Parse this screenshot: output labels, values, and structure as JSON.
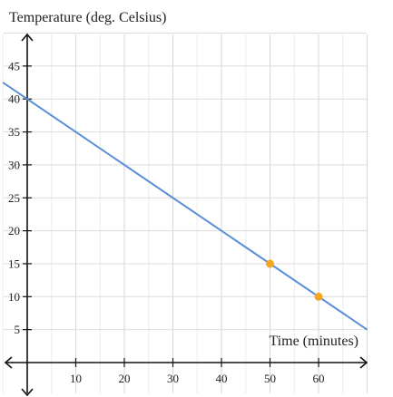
{
  "chart_data": {
    "type": "line",
    "ylabel": "Temperature (deg. Celsius)",
    "xlabel": "Time (minutes)",
    "xlim": [
      -5,
      70
    ],
    "ylim": [
      -1,
      50
    ],
    "x_ticks": [
      10,
      20,
      30,
      40,
      50,
      60
    ],
    "y_ticks": [
      5,
      10,
      15,
      20,
      25,
      30,
      35,
      40,
      45
    ],
    "grid": true,
    "line": {
      "intercept": 40,
      "slope": -0.5,
      "x_range": [
        -5,
        70
      ],
      "color": "#5b8fd8"
    },
    "points": [
      {
        "x": 50,
        "y": 15
      },
      {
        "x": 60,
        "y": 10
      }
    ],
    "point_color": "#f5a623"
  }
}
